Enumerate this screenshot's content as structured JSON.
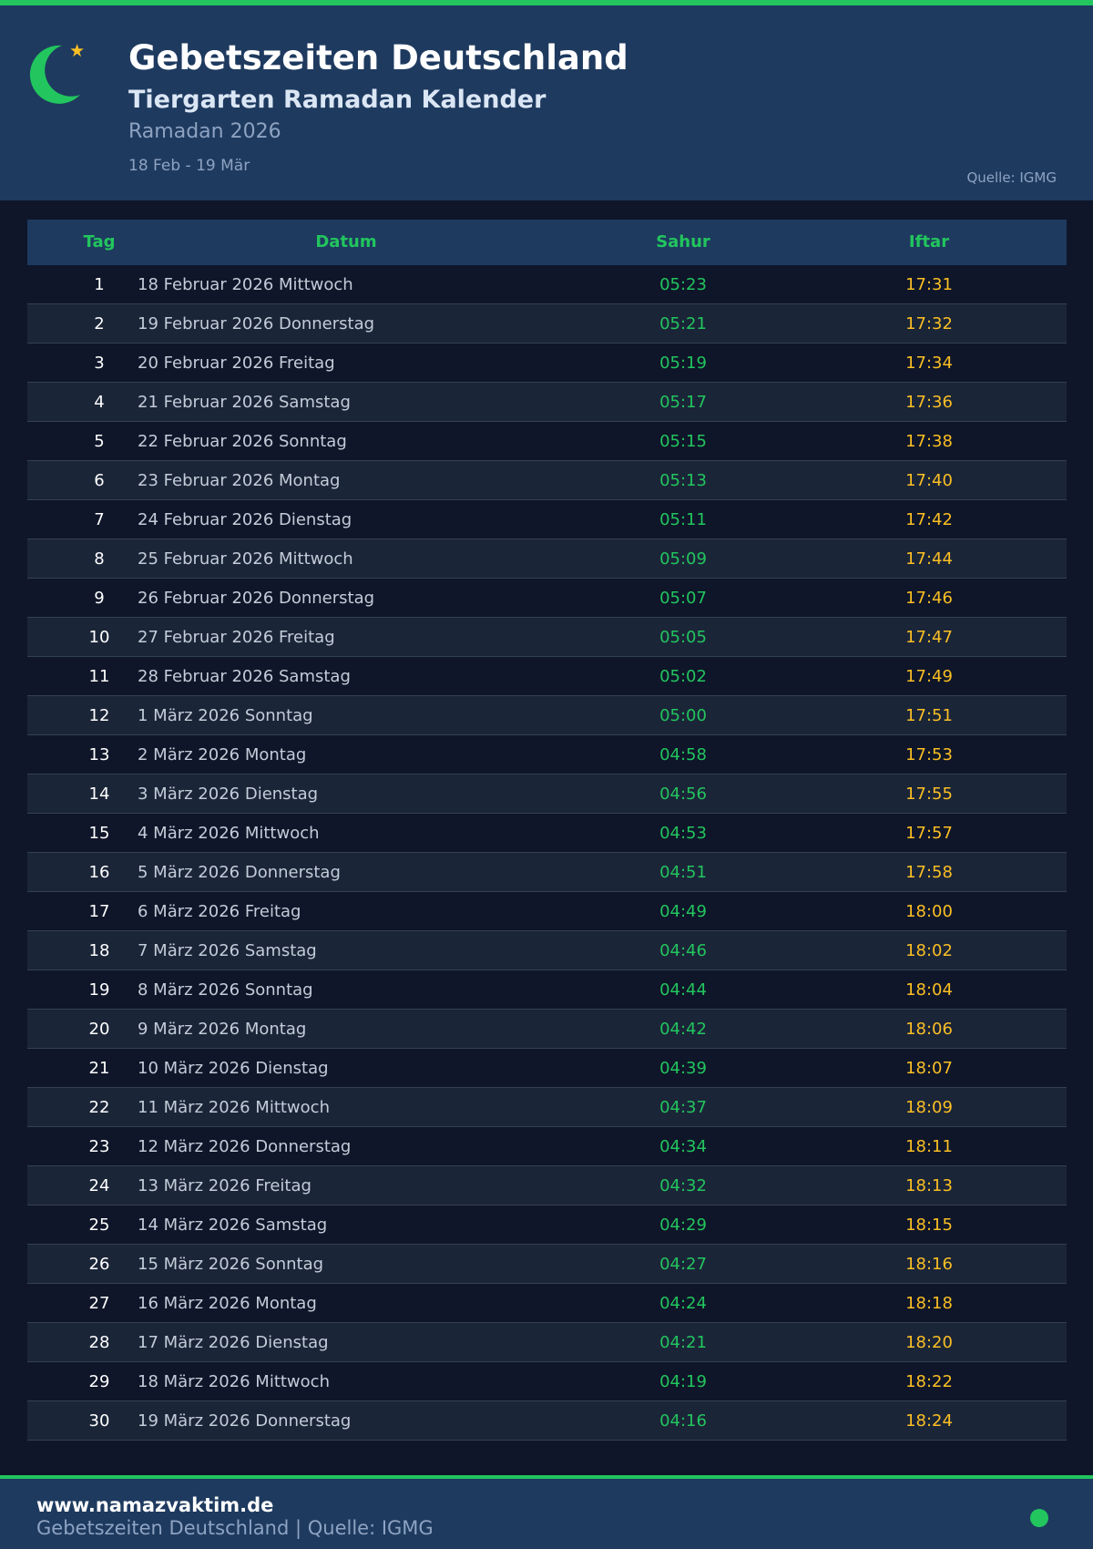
{
  "colors": {
    "accent": "#22c55e",
    "iftar": "#fbbf24",
    "header_bg": "#1e3a5f",
    "page_bg": "#0f1629"
  },
  "header": {
    "icon": "crescent-star-icon",
    "title": "Gebetszeiten Deutschland",
    "subtitle": "Tiergarten Ramadan Kalender",
    "year": "Ramadan 2026",
    "range": "18 Feb - 19 Mär",
    "source": "Quelle: IGMG"
  },
  "table": {
    "columns": [
      "Tag",
      "Datum",
      "Sahur",
      "Iftar"
    ],
    "rows": [
      [
        "1",
        "18 Februar 2026 Mittwoch",
        "05:23",
        "17:31"
      ],
      [
        "2",
        "19 Februar 2026 Donnerstag",
        "05:21",
        "17:32"
      ],
      [
        "3",
        "20 Februar 2026 Freitag",
        "05:19",
        "17:34"
      ],
      [
        "4",
        "21 Februar 2026 Samstag",
        "05:17",
        "17:36"
      ],
      [
        "5",
        "22 Februar 2026 Sonntag",
        "05:15",
        "17:38"
      ],
      [
        "6",
        "23 Februar 2026 Montag",
        "05:13",
        "17:40"
      ],
      [
        "7",
        "24 Februar 2026 Dienstag",
        "05:11",
        "17:42"
      ],
      [
        "8",
        "25 Februar 2026 Mittwoch",
        "05:09",
        "17:44"
      ],
      [
        "9",
        "26 Februar 2026 Donnerstag",
        "05:07",
        "17:46"
      ],
      [
        "10",
        "27 Februar 2026 Freitag",
        "05:05",
        "17:47"
      ],
      [
        "11",
        "28 Februar 2026 Samstag",
        "05:02",
        "17:49"
      ],
      [
        "12",
        "1 März 2026 Sonntag",
        "05:00",
        "17:51"
      ],
      [
        "13",
        "2 März 2026 Montag",
        "04:58",
        "17:53"
      ],
      [
        "14",
        "3 März 2026 Dienstag",
        "04:56",
        "17:55"
      ],
      [
        "15",
        "4 März 2026 Mittwoch",
        "04:53",
        "17:57"
      ],
      [
        "16",
        "5 März 2026 Donnerstag",
        "04:51",
        "17:58"
      ],
      [
        "17",
        "6 März 2026 Freitag",
        "04:49",
        "18:00"
      ],
      [
        "18",
        "7 März 2026 Samstag",
        "04:46",
        "18:02"
      ],
      [
        "19",
        "8 März 2026 Sonntag",
        "04:44",
        "18:04"
      ],
      [
        "20",
        "9 März 2026 Montag",
        "04:42",
        "18:06"
      ],
      [
        "21",
        "10 März 2026 Dienstag",
        "04:39",
        "18:07"
      ],
      [
        "22",
        "11 März 2026 Mittwoch",
        "04:37",
        "18:09"
      ],
      [
        "23",
        "12 März 2026 Donnerstag",
        "04:34",
        "18:11"
      ],
      [
        "24",
        "13 März 2026 Freitag",
        "04:32",
        "18:13"
      ],
      [
        "25",
        "14 März 2026 Samstag",
        "04:29",
        "18:15"
      ],
      [
        "26",
        "15 März 2026 Sonntag",
        "04:27",
        "18:16"
      ],
      [
        "27",
        "16 März 2026 Montag",
        "04:24",
        "18:18"
      ],
      [
        "28",
        "17 März 2026 Dienstag",
        "04:21",
        "18:20"
      ],
      [
        "29",
        "18 März 2026 Mittwoch",
        "04:19",
        "18:22"
      ],
      [
        "30",
        "19 März 2026 Donnerstag",
        "04:16",
        "18:24"
      ]
    ]
  },
  "footer": {
    "site": "www.namazvaktim.de",
    "text": "Gebetszeiten Deutschland | Quelle: IGMG",
    "status_icon": "status-dot-icon"
  }
}
